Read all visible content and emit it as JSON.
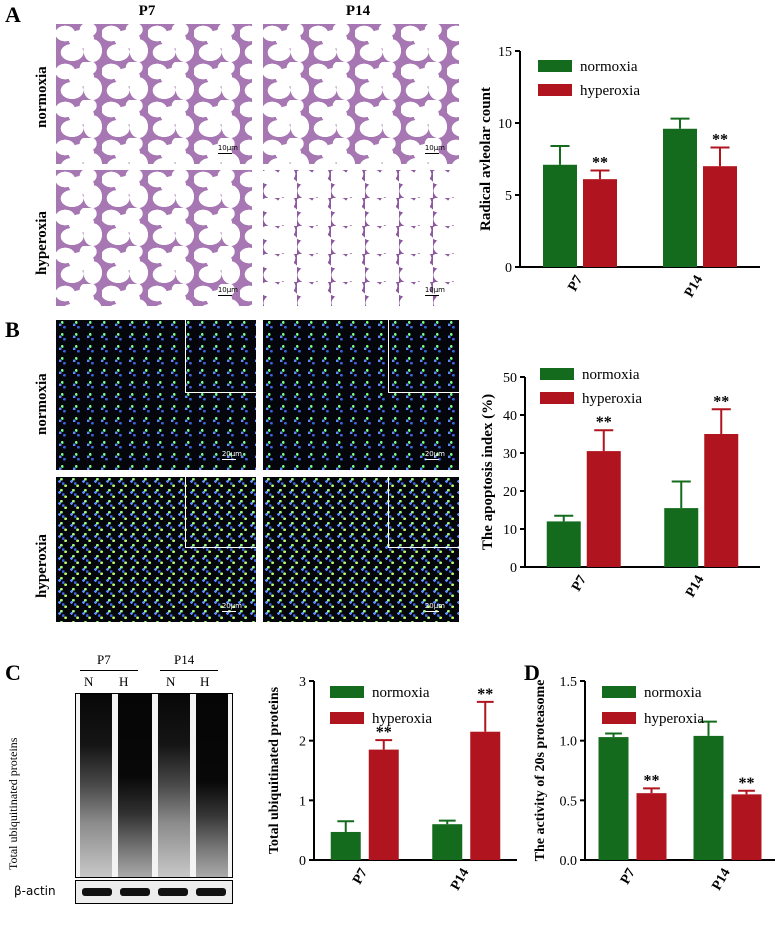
{
  "panels": {
    "A": {
      "letter": "A",
      "col_headers": [
        "P7",
        "P14"
      ],
      "row_headers": [
        "normoxia",
        "hyperoxia"
      ],
      "scale_bar": "10μm"
    },
    "B": {
      "letter": "B",
      "row_headers": [
        "normoxia",
        "hyperoxia"
      ],
      "scale_bar": "20μm"
    },
    "C": {
      "letter": "C",
      "blot_groups": [
        "P7",
        "P14"
      ],
      "lanes": [
        "N",
        "H",
        "N",
        "H"
      ],
      "blot_label": "Total ubiquitinated proteins",
      "loading_control": "β-actin"
    },
    "D": {
      "letter": "D"
    }
  },
  "colors": {
    "normoxia": "#146b1e",
    "hyperoxia": "#b0141e"
  },
  "chart_data": [
    {
      "id": "A",
      "type": "bar",
      "categories": [
        "P7",
        "P14"
      ],
      "ylabel": "Radical avleolar count",
      "ylim": [
        0,
        15
      ],
      "yticks": [
        "0",
        "5",
        "10",
        "15"
      ],
      "legend": [
        "normoxia",
        "hyperoxia"
      ],
      "series": [
        {
          "name": "normoxia",
          "values": [
            7.1,
            9.6
          ],
          "errors": [
            1.3,
            0.7
          ],
          "sig": [
            "",
            ""
          ]
        },
        {
          "name": "hyperoxia",
          "values": [
            6.1,
            7.0
          ],
          "errors": [
            0.6,
            1.3
          ],
          "sig": [
            "**",
            "**"
          ]
        }
      ]
    },
    {
      "id": "B",
      "type": "bar",
      "categories": [
        "P7",
        "P14"
      ],
      "ylabel": "The apoptosis index (%)",
      "ylim": [
        0,
        50
      ],
      "yticks": [
        "0",
        "10",
        "20",
        "30",
        "40",
        "50"
      ],
      "legend": [
        "normoxia",
        "hyperoxia"
      ],
      "series": [
        {
          "name": "normoxia",
          "values": [
            12,
            15.5
          ],
          "errors": [
            1.5,
            7
          ],
          "sig": [
            "",
            ""
          ]
        },
        {
          "name": "hyperoxia",
          "values": [
            30.5,
            35
          ],
          "errors": [
            5.5,
            6.5
          ],
          "sig": [
            "**",
            "**"
          ]
        }
      ]
    },
    {
      "id": "C",
      "type": "bar",
      "categories": [
        "P7",
        "P14"
      ],
      "ylabel": "Total ubiquitinated proteins",
      "ylim": [
        0,
        3
      ],
      "yticks": [
        "0",
        "1",
        "2",
        "3"
      ],
      "legend": [
        "normoxia",
        "hyperoxia"
      ],
      "series": [
        {
          "name": "normoxia",
          "values": [
            0.47,
            0.6
          ],
          "errors": [
            0.18,
            0.06
          ],
          "sig": [
            "",
            ""
          ]
        },
        {
          "name": "hyperoxia",
          "values": [
            1.85,
            2.15
          ],
          "errors": [
            0.16,
            0.5
          ],
          "sig": [
            "**",
            "**"
          ]
        }
      ]
    },
    {
      "id": "D",
      "type": "bar",
      "categories": [
        "P7",
        "P14"
      ],
      "ylabel": "The activity of 20s proteasome",
      "ylim": [
        0,
        1.5
      ],
      "yticks": [
        "0.0",
        "0.5",
        "1.0",
        "1.5"
      ],
      "legend": [
        "normoxia",
        "hyperoxia"
      ],
      "series": [
        {
          "name": "normoxia",
          "values": [
            1.03,
            1.04
          ],
          "errors": [
            0.03,
            0.12
          ],
          "sig": [
            "",
            ""
          ]
        },
        {
          "name": "hyperoxia",
          "values": [
            0.56,
            0.55
          ],
          "errors": [
            0.04,
            0.03
          ],
          "sig": [
            "**",
            "**"
          ]
        }
      ]
    }
  ]
}
